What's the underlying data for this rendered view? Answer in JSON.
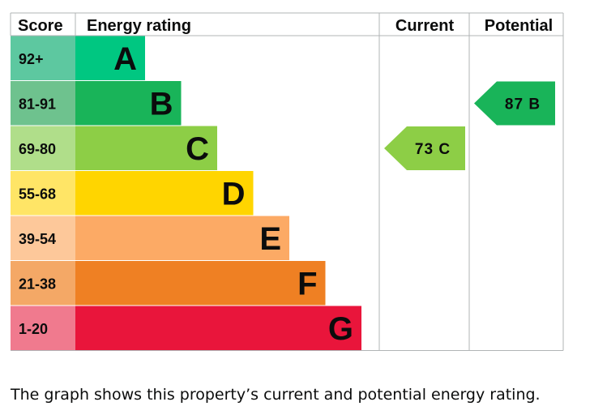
{
  "chart_data": {
    "type": "bar",
    "headers": {
      "score": "Score",
      "rating": "Energy rating",
      "current": "Current",
      "potential": "Potential"
    },
    "bands": [
      {
        "score": "92+",
        "letter": "A",
        "color": "#00c781",
        "label_color": "#5dc8a0"
      },
      {
        "score": "81-91",
        "letter": "B",
        "color": "#19b459",
        "label_color": "#6ec28e"
      },
      {
        "score": "69-80",
        "letter": "C",
        "color": "#8dce46",
        "label_color": "#b0de8a"
      },
      {
        "score": "55-68",
        "letter": "D",
        "color": "#ffd500",
        "label_color": "#ffe566"
      },
      {
        "score": "39-54",
        "letter": "E",
        "color": "#fcaa65",
        "label_color": "#fdc89a"
      },
      {
        "score": "21-38",
        "letter": "F",
        "color": "#ef8023",
        "label_color": "#f4a866"
      },
      {
        "score": "1-20",
        "letter": "G",
        "color": "#e9153b",
        "label_color": "#f07a8e"
      }
    ],
    "current": {
      "value": 73,
      "letter": "C",
      "label": "73 C",
      "color": "#8dce46"
    },
    "potential": {
      "value": 87,
      "letter": "B",
      "label": "87 B",
      "color": "#19b459"
    }
  },
  "caption": "The graph shows this property’s current and potential energy rating."
}
